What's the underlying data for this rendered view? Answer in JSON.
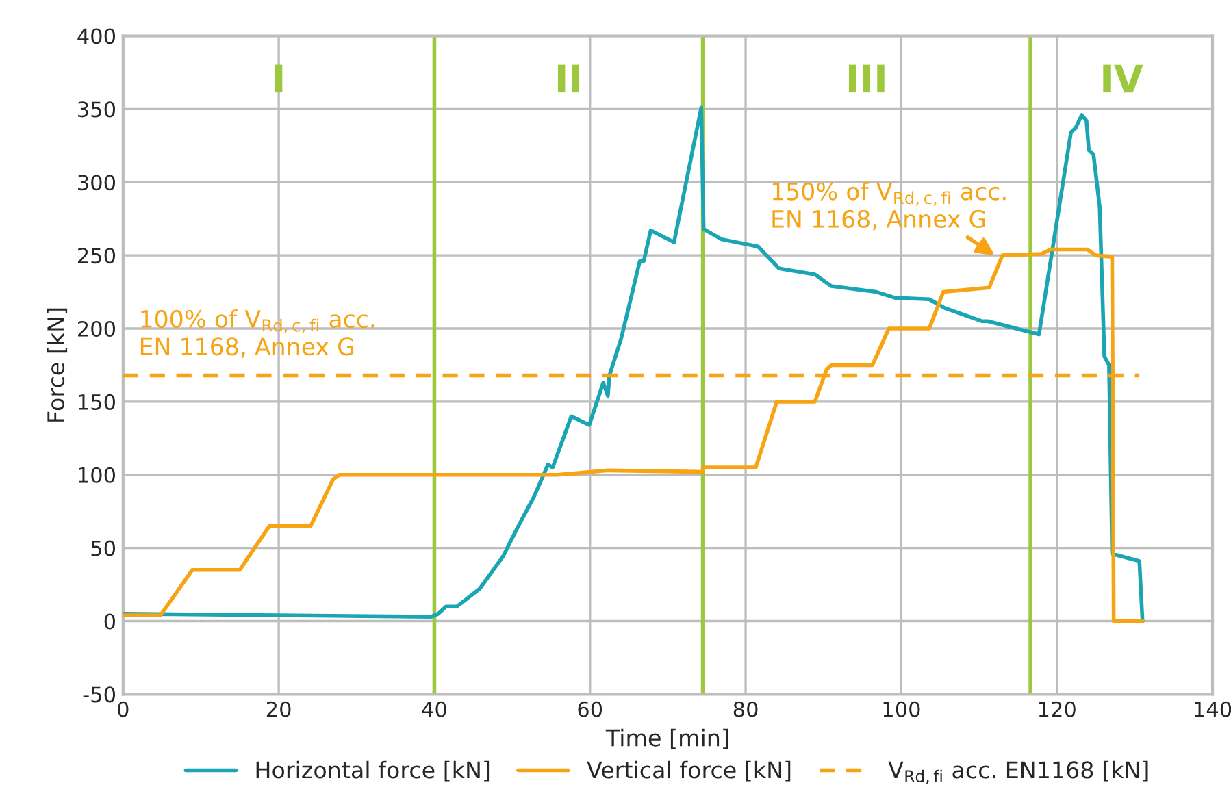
{
  "chart_data": {
    "type": "line",
    "xlabel": "Time [min]",
    "ylabel": "Force [kN]",
    "xlim": [
      0,
      140
    ],
    "xticks": [
      0,
      20,
      40,
      60,
      80,
      100,
      120,
      140
    ],
    "ylim": [
      -50,
      400
    ],
    "yticks": [
      -50,
      0,
      50,
      100,
      150,
      200,
      250,
      300,
      350,
      400
    ],
    "grid": true,
    "legend": "bottom",
    "line_style": "solid",
    "marker": "none",
    "series": [
      {
        "name": "Horizontal force [kN]",
        "color": "#1ba5b3",
        "x": [
          0,
          39.6,
          40.5,
          41.5,
          42.9,
          45.8,
          48.8,
          50.5,
          52.8,
          54.6,
          55.2,
          57.6,
          59.9,
          61.7,
          62.3,
          62.5,
          64,
          66.4,
          66.9,
          67.8,
          70.8,
          74.3,
          74.6,
          76.9,
          81.6,
          84.3,
          88.9,
          91,
          96.8,
          99.2,
          103.6,
          105.6,
          110.4,
          111.1,
          117.7,
          121.8,
          122.4,
          123.2,
          123.8,
          124.1,
          124.7,
          125.5,
          126.1,
          126.7,
          127.1,
          130.6,
          131
        ],
        "values": [
          5,
          3,
          5,
          10,
          10,
          22,
          44,
          62,
          85,
          107,
          105,
          140,
          134,
          163,
          154,
          168,
          193,
          246,
          246,
          267,
          259,
          351,
          268,
          261,
          256,
          241,
          237,
          229,
          225,
          221,
          220,
          214,
          205,
          205,
          196,
          334,
          337,
          346,
          342,
          322,
          319,
          283,
          181,
          175,
          46,
          41,
          0
        ]
      },
      {
        "name": "Vertical force [kN]",
        "color": "#f7a414",
        "x": [
          0,
          4.8,
          8.9,
          15,
          16,
          18.8,
          24.1,
          27,
          27.8,
          55.8,
          58.1,
          62.3,
          74.5,
          74.6,
          81.3,
          84,
          88.9,
          90.4,
          91,
          96.3,
          98.4,
          103.6,
          105.4,
          111.3,
          113,
          118,
          119.2,
          123.9,
          125,
          127.1,
          127.3,
          131
        ],
        "values": [
          4,
          4,
          35,
          35,
          43,
          65,
          65,
          97,
          100,
          100,
          101,
          103,
          102,
          105,
          105,
          150,
          150,
          172,
          175,
          175,
          200,
          200,
          225,
          228,
          250,
          251,
          254,
          254,
          250,
          249,
          0,
          0
        ]
      },
      {
        "name": "V$_{Rd,fi}$ acc. EN1168 [kN]",
        "color": "#f7a414",
        "line_style": "dashed",
        "x": [
          0,
          130.6
        ],
        "values": [
          168,
          168
        ]
      }
    ],
    "ref_lines": [
      {
        "axis": "x",
        "value": 40,
        "color": "#9dc73c"
      },
      {
        "axis": "x",
        "value": 74.5,
        "color": "#9dc73c"
      },
      {
        "axis": "x",
        "value": 116.6,
        "color": "#9dc73c"
      }
    ],
    "annotations": [
      "I",
      "II",
      "III",
      "IV",
      {
        "text": "100% of V$_{Rd,c,fi}$ acc.\nEN 1168, Annex G",
        "x": 2,
        "y": 168
      },
      {
        "text": "150% of V$_{Rd,c,fi}$ acc.\nEN 1168, Annex G",
        "x": 112,
        "y": 250
      }
    ]
  }
}
